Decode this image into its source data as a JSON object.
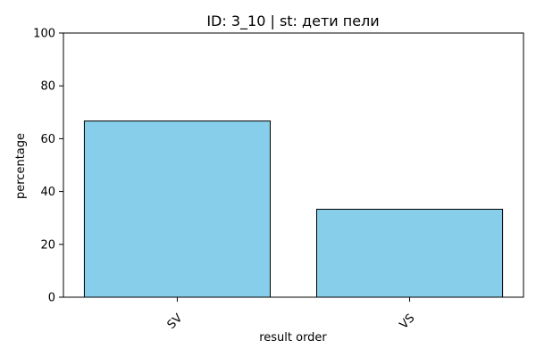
{
  "chart_data": {
    "type": "bar",
    "title": "ID: 3_10 | st: дети пели",
    "xlabel": "result order",
    "ylabel": "percentage",
    "categories": [
      "SV",
      "VS"
    ],
    "values": [
      66.7,
      33.3
    ],
    "ylim": [
      0,
      100
    ],
    "yticks": [
      "0",
      "20",
      "40",
      "60",
      "80",
      "100"
    ],
    "bar_color": "#87ceeb",
    "bar_edge_color": "#000000",
    "grid": false,
    "legend": "none"
  }
}
